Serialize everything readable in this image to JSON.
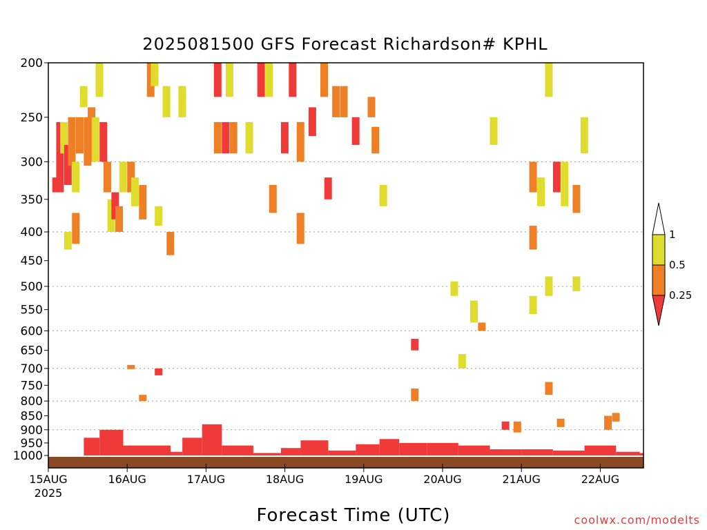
{
  "chart_data": {
    "type": "heatmap",
    "title": "2025081500 GFS Forecast Richardson# KPHL",
    "xlabel": "Forecast Time (UTC)",
    "ylabel": "",
    "credit": "coolwx.com/modelts",
    "y_axis": {
      "unit": "hPa",
      "inverted": true,
      "range": [
        200,
        1000
      ],
      "ticks": [
        200,
        250,
        300,
        350,
        400,
        450,
        500,
        550,
        600,
        650,
        700,
        750,
        800,
        850,
        900,
        950,
        1000
      ],
      "dotted_gridlines": [
        300,
        400,
        500,
        600,
        700,
        800,
        900
      ]
    },
    "x_axis": {
      "ticks": [
        "15AUG",
        "16AUG",
        "17AUG",
        "18AUG",
        "19AUG",
        "20AUG",
        "21AUG",
        "22AUG"
      ],
      "first_tick_year": "2025",
      "range_days": [
        0,
        7.55
      ]
    },
    "legend": {
      "position": "right",
      "labels": [
        "1",
        "0.5",
        "0.25"
      ],
      "bins": [
        {
          "range": "0.5–1",
          "color": "#e0dc2e"
        },
        {
          "range": "0.25–0.5",
          "color": "#ef7f24"
        },
        {
          "range": "<0.25",
          "color": "#f03a3a"
        }
      ],
      "extend": "both"
    },
    "colors": {
      "yellow": "#e0dc2e",
      "orange": "#ef7f24",
      "red": "#f03a3a",
      "ground": "#8b4a26"
    },
    "cells": [
      {
        "t": 0.05,
        "p0": 320,
        "p1": 340,
        "c": "red"
      },
      {
        "t": 0.1,
        "p0": 255,
        "p1": 340,
        "c": "red"
      },
      {
        "t": 0.15,
        "p0": 255,
        "p1": 290,
        "c": "yellow"
      },
      {
        "t": 0.2,
        "p0": 280,
        "p1": 330,
        "c": "red"
      },
      {
        "t": 0.25,
        "p0": 250,
        "p1": 305,
        "c": "orange"
      },
      {
        "t": 0.3,
        "p0": 300,
        "p1": 340,
        "c": "yellow"
      },
      {
        "t": 0.35,
        "p0": 250,
        "p1": 290,
        "c": "orange"
      },
      {
        "t": 0.4,
        "p0": 220,
        "p1": 240,
        "c": "yellow"
      },
      {
        "t": 0.45,
        "p0": 250,
        "p1": 305,
        "c": "orange"
      },
      {
        "t": 0.5,
        "p0": 240,
        "p1": 300,
        "c": "orange"
      },
      {
        "t": 0.55,
        "p0": 250,
        "p1": 300,
        "c": "yellow"
      },
      {
        "t": 0.6,
        "p0": 200,
        "p1": 230,
        "c": "yellow"
      },
      {
        "t": 0.65,
        "p0": 255,
        "p1": 300,
        "c": "red"
      },
      {
        "t": 0.7,
        "p0": 300,
        "p1": 340,
        "c": "orange"
      },
      {
        "t": 0.75,
        "p0": 350,
        "p1": 400,
        "c": "yellow"
      },
      {
        "t": 0.8,
        "p0": 340,
        "p1": 380,
        "c": "red"
      },
      {
        "t": 0.85,
        "p0": 360,
        "p1": 400,
        "c": "orange"
      },
      {
        "t": 0.9,
        "p0": 300,
        "p1": 340,
        "c": "yellow"
      },
      {
        "t": 1.0,
        "p0": 300,
        "p1": 340,
        "c": "orange"
      },
      {
        "t": 1.05,
        "p0": 320,
        "p1": 360,
        "c": "yellow"
      },
      {
        "t": 1.15,
        "p0": 330,
        "p1": 380,
        "c": "orange"
      },
      {
        "t": 1.25,
        "p0": 200,
        "p1": 230,
        "c": "orange"
      },
      {
        "t": 1.3,
        "p0": 200,
        "p1": 220,
        "c": "yellow"
      },
      {
        "t": 1.45,
        "p0": 220,
        "p1": 250,
        "c": "yellow"
      },
      {
        "t": 1.65,
        "p0": 220,
        "p1": 250,
        "c": "yellow"
      },
      {
        "t": 2.1,
        "p0": 255,
        "p1": 290,
        "c": "orange"
      },
      {
        "t": 2.2,
        "p0": 255,
        "p1": 290,
        "c": "red"
      },
      {
        "t": 2.3,
        "p0": 255,
        "p1": 290,
        "c": "orange"
      },
      {
        "t": 2.1,
        "p0": 200,
        "p1": 230,
        "c": "red"
      },
      {
        "t": 2.25,
        "p0": 200,
        "p1": 230,
        "c": "yellow"
      },
      {
        "t": 2.5,
        "p0": 255,
        "p1": 290,
        "c": "yellow"
      },
      {
        "t": 2.65,
        "p0": 200,
        "p1": 230,
        "c": "red"
      },
      {
        "t": 2.75,
        "p0": 200,
        "p1": 230,
        "c": "yellow"
      },
      {
        "t": 2.95,
        "p0": 255,
        "p1": 290,
        "c": "red"
      },
      {
        "t": 3.05,
        "p0": 200,
        "p1": 230,
        "c": "red"
      },
      {
        "t": 3.15,
        "p0": 255,
        "p1": 300,
        "c": "orange"
      },
      {
        "t": 3.3,
        "p0": 240,
        "p1": 270,
        "c": "red"
      },
      {
        "t": 3.45,
        "p0": 200,
        "p1": 230,
        "c": "orange"
      },
      {
        "t": 3.6,
        "p0": 220,
        "p1": 250,
        "c": "orange"
      },
      {
        "t": 3.7,
        "p0": 220,
        "p1": 250,
        "c": "orange"
      },
      {
        "t": 3.85,
        "p0": 250,
        "p1": 280,
        "c": "red"
      },
      {
        "t": 4.05,
        "p0": 230,
        "p1": 250,
        "c": "orange"
      },
      {
        "t": 4.1,
        "p0": 260,
        "p1": 290,
        "c": "orange"
      },
      {
        "t": 0.2,
        "p0": 400,
        "p1": 430,
        "c": "yellow"
      },
      {
        "t": 0.3,
        "p0": 370,
        "p1": 420,
        "c": "orange"
      },
      {
        "t": 1.35,
        "p0": 360,
        "p1": 390,
        "c": "yellow"
      },
      {
        "t": 1.5,
        "p0": 400,
        "p1": 440,
        "c": "orange"
      },
      {
        "t": 2.8,
        "p0": 330,
        "p1": 370,
        "c": "orange"
      },
      {
        "t": 3.15,
        "p0": 370,
        "p1": 420,
        "c": "orange"
      },
      {
        "t": 3.5,
        "p0": 320,
        "p1": 350,
        "c": "red"
      },
      {
        "t": 4.2,
        "p0": 330,
        "p1": 360,
        "c": "yellow"
      },
      {
        "t": 5.6,
        "p0": 250,
        "p1": 280,
        "c": "yellow"
      },
      {
        "t": 6.1,
        "p0": 300,
        "p1": 340,
        "c": "orange"
      },
      {
        "t": 6.2,
        "p0": 320,
        "p1": 360,
        "c": "yellow"
      },
      {
        "t": 6.1,
        "p0": 390,
        "p1": 430,
        "c": "orange"
      },
      {
        "t": 6.3,
        "p0": 200,
        "p1": 230,
        "c": "yellow"
      },
      {
        "t": 6.4,
        "p0": 300,
        "p1": 340,
        "c": "red"
      },
      {
        "t": 6.5,
        "p0": 300,
        "p1": 360,
        "c": "yellow"
      },
      {
        "t": 6.65,
        "p0": 330,
        "p1": 370,
        "c": "orange"
      },
      {
        "t": 6.75,
        "p0": 250,
        "p1": 290,
        "c": "yellow"
      },
      {
        "t": 6.1,
        "p0": 520,
        "p1": 560,
        "c": "yellow"
      },
      {
        "t": 6.3,
        "p0": 480,
        "p1": 520,
        "c": "yellow"
      },
      {
        "t": 6.65,
        "p0": 480,
        "p1": 510,
        "c": "yellow"
      },
      {
        "t": 5.35,
        "p0": 530,
        "p1": 580,
        "c": "yellow"
      },
      {
        "t": 5.45,
        "p0": 580,
        "p1": 600,
        "c": "orange"
      },
      {
        "t": 5.1,
        "p0": 490,
        "p1": 520,
        "c": "yellow"
      },
      {
        "t": 4.6,
        "p0": 620,
        "p1": 650,
        "c": "red"
      },
      {
        "t": 5.2,
        "p0": 660,
        "p1": 700,
        "c": "yellow"
      },
      {
        "t": 1.0,
        "p0": 690,
        "p1": 700,
        "c": "orange"
      },
      {
        "t": 1.35,
        "p0": 700,
        "p1": 720,
        "c": "red"
      },
      {
        "t": 1.15,
        "p0": 780,
        "p1": 800,
        "c": "orange"
      },
      {
        "t": 4.6,
        "p0": 760,
        "p1": 800,
        "c": "orange"
      },
      {
        "t": 6.3,
        "p0": 740,
        "p1": 780,
        "c": "orange"
      },
      {
        "t": 5.75,
        "p0": 870,
        "p1": 900,
        "c": "red"
      },
      {
        "t": 5.9,
        "p0": 870,
        "p1": 910,
        "c": "orange"
      },
      {
        "t": 6.45,
        "p0": 860,
        "p1": 890,
        "c": "orange"
      },
      {
        "t": 7.05,
        "p0": 850,
        "p1": 900,
        "c": "orange"
      },
      {
        "t": 7.15,
        "p0": 840,
        "p1": 870,
        "c": "orange"
      }
    ],
    "boundary_layer": [
      {
        "t": 0.45,
        "top": 930,
        "c": "red"
      },
      {
        "t": 0.65,
        "top": 900,
        "c": "red"
      },
      {
        "t": 0.95,
        "top": 960,
        "c": "red"
      },
      {
        "t": 1.55,
        "top": 985,
        "c": "red"
      },
      {
        "t": 1.7,
        "top": 930,
        "c": "red"
      },
      {
        "t": 1.95,
        "top": 880,
        "c": "red"
      },
      {
        "t": 2.2,
        "top": 960,
        "c": "red"
      },
      {
        "t": 2.6,
        "top": 990,
        "c": "red"
      },
      {
        "t": 2.95,
        "top": 970,
        "c": "red"
      },
      {
        "t": 3.2,
        "top": 940,
        "c": "red"
      },
      {
        "t": 3.55,
        "top": 980,
        "c": "red"
      },
      {
        "t": 3.9,
        "top": 955,
        "c": "red"
      },
      {
        "t": 4.2,
        "top": 935,
        "c": "red"
      },
      {
        "t": 4.45,
        "top": 950,
        "c": "red"
      },
      {
        "t": 4.8,
        "top": 950,
        "c": "red"
      },
      {
        "t": 5.2,
        "top": 960,
        "c": "red"
      },
      {
        "t": 5.6,
        "top": 975,
        "c": "red"
      },
      {
        "t": 6.0,
        "top": 975,
        "c": "red"
      },
      {
        "t": 6.4,
        "top": 980,
        "c": "red"
      },
      {
        "t": 6.8,
        "top": 960,
        "c": "red"
      },
      {
        "t": 7.2,
        "top": 985,
        "c": "red"
      },
      {
        "t": 7.5,
        "top": 990,
        "c": "red"
      }
    ]
  }
}
